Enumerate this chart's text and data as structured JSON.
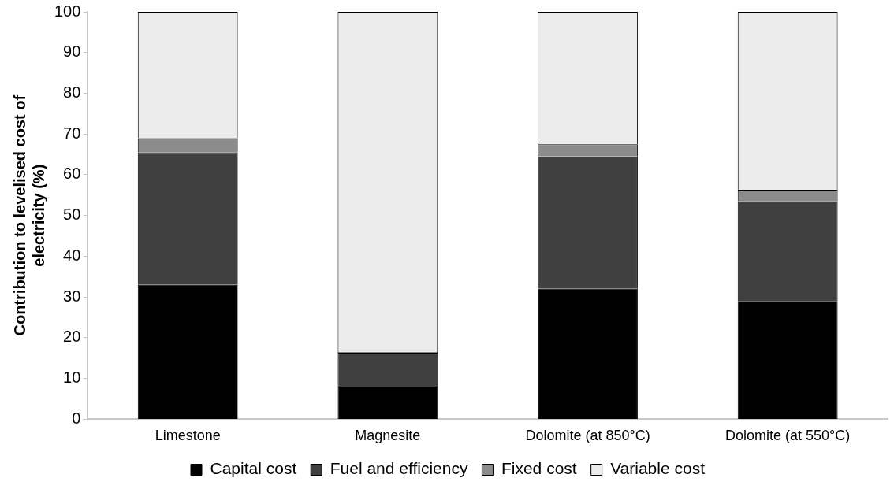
{
  "chart_data": {
    "type": "bar",
    "stacked": true,
    "ylabel": "Contribution to levelised cost of electricity (%)",
    "categories": [
      "Limestone",
      "Magnesite",
      "Dolomite (at 850°C)",
      "Dolomite (at 550°C)"
    ],
    "series": [
      {
        "name": "Capital cost",
        "color": "#000000",
        "values": [
          33,
          8,
          32,
          29
        ]
      },
      {
        "name": "Fuel and efficiency",
        "color": "#404040",
        "values": [
          32.5,
          8.3,
          32.5,
          24.5
        ]
      },
      {
        "name": "Fixed cost",
        "color": "#8c8c8c",
        "values": [
          3.5,
          0.2,
          3,
          2.8
        ]
      },
      {
        "name": "Variable cost",
        "color": "#ececec",
        "values": [
          31,
          83.5,
          32.5,
          43.7
        ]
      }
    ],
    "ylim": [
      0,
      100
    ],
    "yticks": [
      0,
      10,
      20,
      30,
      40,
      50,
      60,
      70,
      80,
      90,
      100
    ],
    "grid": false,
    "legend": "bottom"
  }
}
